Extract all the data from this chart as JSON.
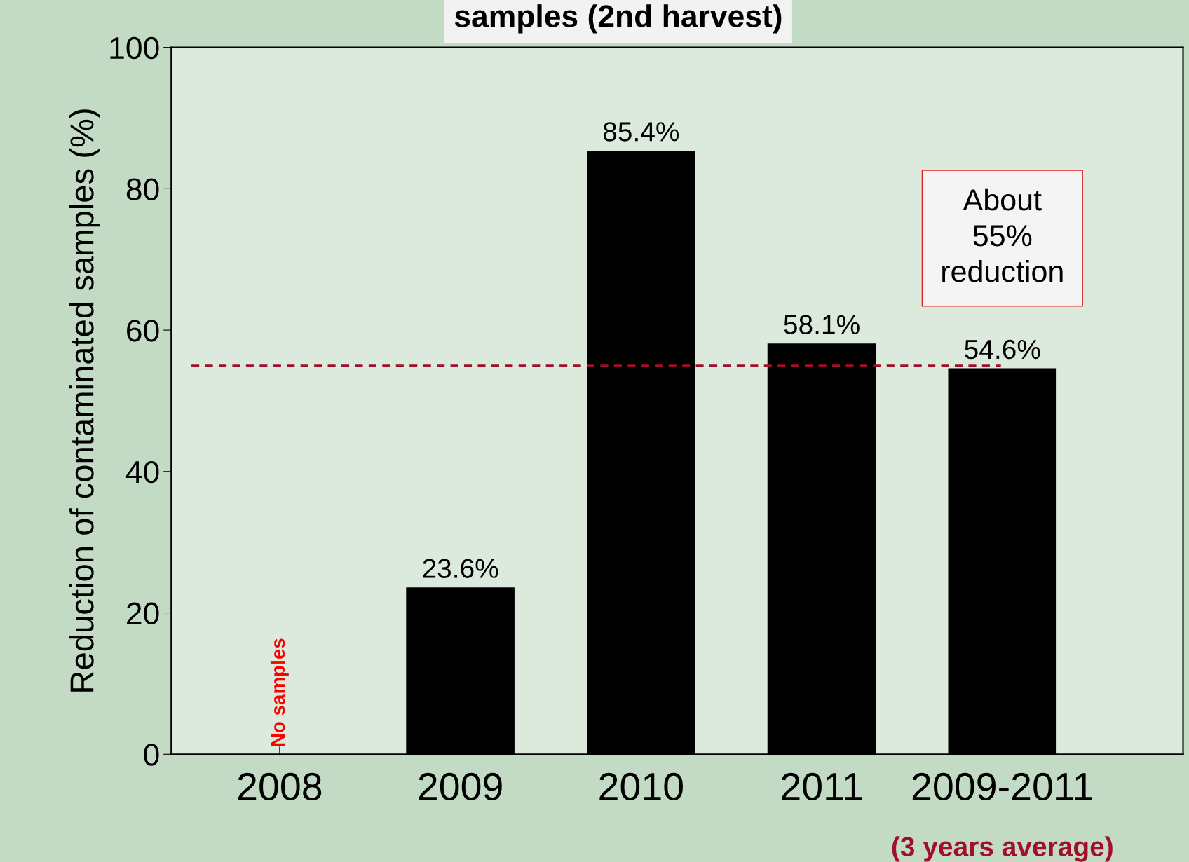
{
  "chart_data": {
    "type": "bar",
    "title": "samples (2nd harvest)",
    "ylabel": "Reduction of contaminated samples (%)",
    "categories": [
      "2008",
      "2009",
      "2010",
      "2011",
      "2009-2011"
    ],
    "values": [
      null,
      23.6,
      85.4,
      58.1,
      54.6
    ],
    "color": "#000000",
    "value_labels": [
      null,
      "23.6%",
      "85.4%",
      "58.1%",
      "54.6%"
    ],
    "ylim": [
      0,
      100
    ],
    "yticks": [
      0,
      20,
      40,
      60,
      80,
      100
    ],
    "grid": false,
    "ref_lines": [
      {
        "axis": "y",
        "value": 55,
        "color": "#a0102a",
        "line_style": "dashed"
      }
    ],
    "annotations": [
      "No samples",
      "About\n55%\nreduction",
      "(3 years average)"
    ]
  }
}
